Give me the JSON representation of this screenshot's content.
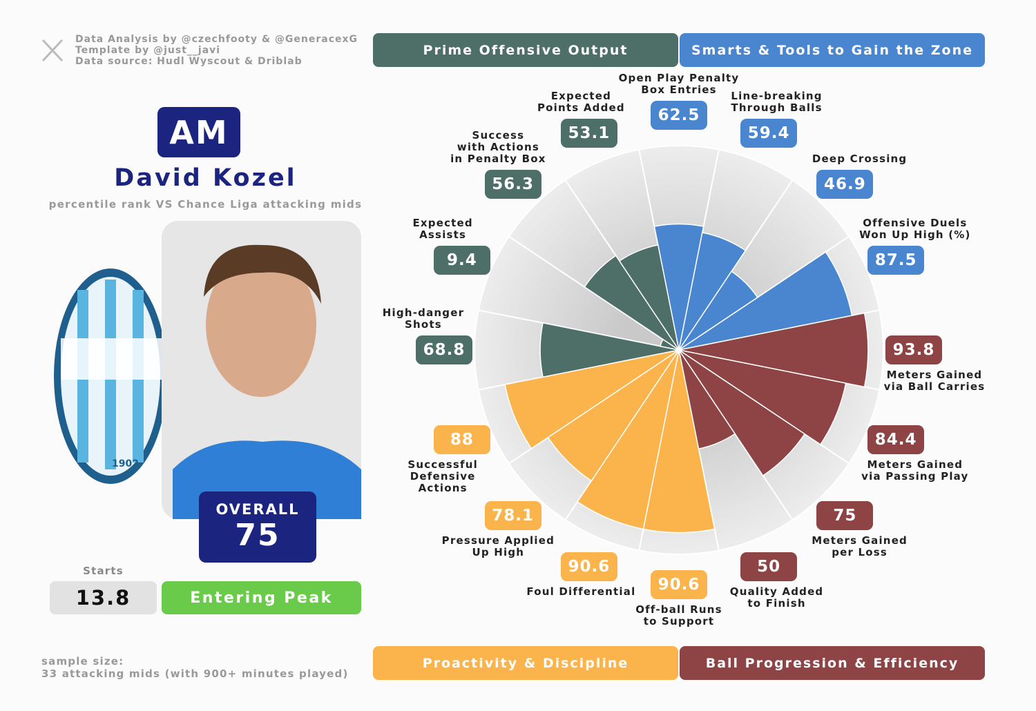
{
  "credits": [
    "Data Analysis by @czechfooty & @GeneracexG",
    "Template by @just__javi",
    "Data source: Hudl Wyscout & Driblab"
  ],
  "player": {
    "position": "AM",
    "name": "David Kozel",
    "subtitle": "percentile rank VS Chance Liga attacking mids",
    "club_founded": "1902",
    "overall_label": "OVERALL",
    "overall": 75,
    "starts_label": "Starts",
    "starts": 13.8,
    "stage": "Entering Peak"
  },
  "sample": "sample size:\n33 attacking mids (with 900+ minutes played)",
  "chart_data": {
    "type": "pizza",
    "ylim": [
      0,
      100
    ],
    "series": [
      {
        "name": "Smarts & Tools to Gain the Zone",
        "color": "#4a86d0",
        "categories": [
          "Open Play Penalty\nBox Entries",
          "Line-breaking\nThrough Balls",
          "Deep Crossing",
          "Offensive Duels\nWon Up High (%)"
        ],
        "values": [
          62.5,
          59.4,
          46.9,
          87.5
        ]
      },
      {
        "name": "Ball Progression & Efficiency",
        "color": "#8e4444",
        "categories": [
          "Meters Gained\nvia Ball Carries",
          "Meters Gained\nvia Passing Play",
          "Meters Gained\nper Loss",
          "Quality Added\nto Finish"
        ],
        "values": [
          93.8,
          84.4,
          75,
          50
        ]
      },
      {
        "name": "Proactivity & Discipline",
        "color": "#fbb44c",
        "categories": [
          "Off-ball Runs\nto Support",
          "Foul Differential",
          "Pressure Applied\nUp High",
          "Successful\nDefensive\nActions"
        ],
        "values": [
          90.6,
          90.6,
          78.1,
          88
        ]
      },
      {
        "name": "Prime Offensive Output",
        "color": "#4e6e68",
        "categories": [
          "High-danger\nShots",
          "Expected\nAssists",
          "Success\nwith Actions\nin Penalty Box",
          "Expected\nPoints Added"
        ],
        "values": [
          68.8,
          9.4,
          56.3,
          53.1
        ]
      }
    ]
  }
}
